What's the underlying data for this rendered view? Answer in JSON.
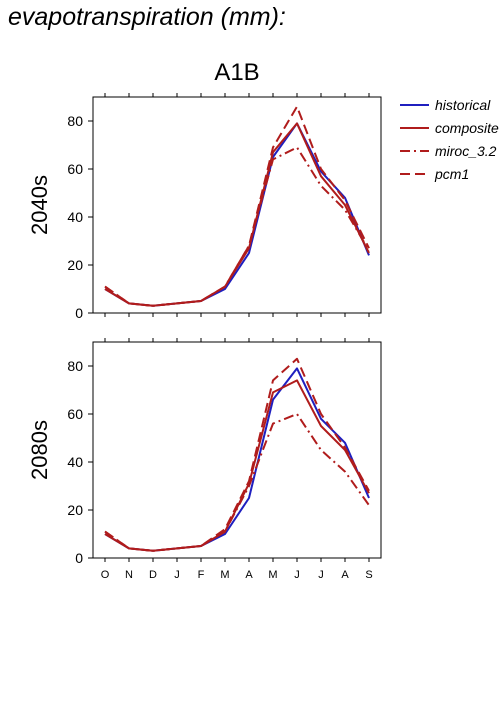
{
  "page": {
    "title": "evapotranspiration (mm):"
  },
  "chart_data": {
    "type": "line",
    "scenario": "A1B",
    "categories": [
      "O",
      "N",
      "D",
      "J",
      "F",
      "M",
      "A",
      "M",
      "J",
      "J",
      "A",
      "S"
    ],
    "ylim": [
      0,
      90
    ],
    "yticks": [
      0,
      20,
      40,
      60,
      80
    ],
    "legend_position": "right",
    "series_styles": [
      {
        "name": "historical",
        "color": "#1f1fbf",
        "dash": ""
      },
      {
        "name": "composite",
        "color": "#b01c1c",
        "dash": ""
      },
      {
        "name": "miroc_3.2",
        "color": "#b01c1c",
        "dash": "10,4,2,4"
      },
      {
        "name": "pcm1",
        "color": "#b01c1c",
        "dash": "10,5"
      }
    ],
    "panels": [
      {
        "row_label": "2040s",
        "series": [
          {
            "name": "historical",
            "values": [
              10,
              4,
              3,
              4,
              5,
              10,
              25,
              65,
              79,
              59,
              48,
              24
            ]
          },
          {
            "name": "composite",
            "values": [
              10,
              4,
              3,
              4,
              5,
              11,
              27,
              67,
              79,
              57,
              45,
              25
            ]
          },
          {
            "name": "miroc_3.2",
            "values": [
              11,
              4,
              3,
              4,
              5,
              11,
              28,
              64,
              69,
              53,
              43,
              26
            ]
          },
          {
            "name": "pcm1",
            "values": [
              11,
              4,
              3,
              4,
              5,
              11,
              28,
              69,
              86,
              60,
              47,
              27
            ]
          }
        ]
      },
      {
        "row_label": "2080s",
        "series": [
          {
            "name": "historical",
            "values": [
              10,
              4,
              3,
              4,
              5,
              10,
              25,
              66,
              79,
              58,
              48,
              25
            ]
          },
          {
            "name": "composite",
            "values": [
              10,
              4,
              3,
              4,
              5,
              11,
              31,
              69,
              74,
              55,
              45,
              27
            ]
          },
          {
            "name": "miroc_3.2",
            "values": [
              11,
              4,
              3,
              4,
              5,
              11,
              30,
              56,
              60,
              45,
              36,
              22
            ]
          },
          {
            "name": "pcm1",
            "values": [
              11,
              4,
              3,
              4,
              5,
              12,
              32,
              74,
              83,
              60,
              46,
              28
            ]
          }
        ]
      }
    ]
  }
}
